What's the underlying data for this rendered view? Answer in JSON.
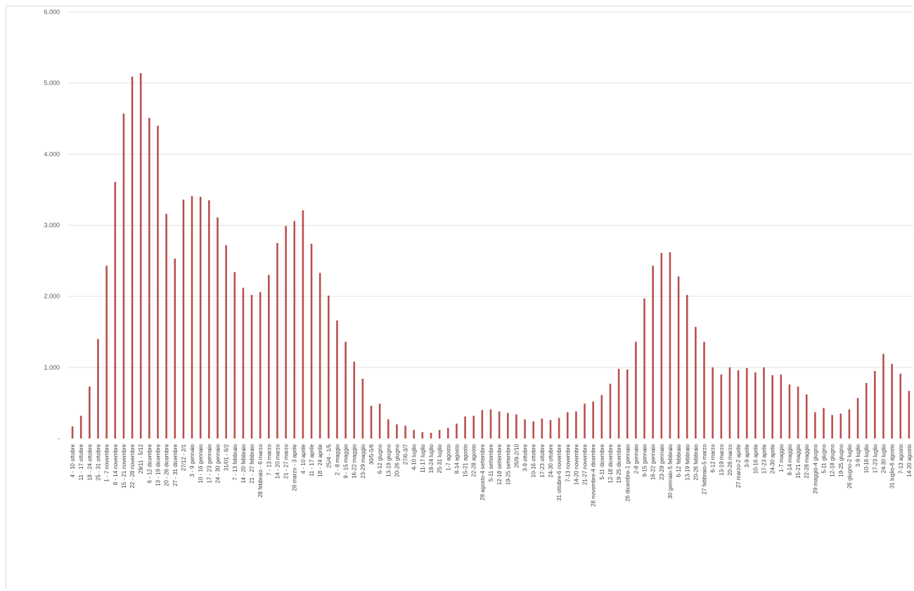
{
  "chart_data": {
    "type": "bar",
    "title": "",
    "xlabel": "",
    "ylabel": "",
    "ylim": [
      0,
      6000
    ],
    "yticks": [
      0,
      1000,
      2000,
      3000,
      4000,
      5000,
      6000
    ],
    "ytick_labels": [
      "-",
      "1.000",
      "2.000",
      "3.000",
      "4.000",
      "5.000",
      "6.000"
    ],
    "grid": true,
    "legend": "none",
    "colors": {
      "bar": "#b9504d",
      "grid": "#e3e3e3",
      "text": "#595959"
    },
    "categories": [
      "4 - 10 ottobre",
      "11 - 17 ottobre",
      "18 - 24 ottobre",
      "25 - 31 ottobre",
      "1 - 7 novembre",
      "8 - 14 novembre",
      "15 - 21 novembre",
      "22 - 28 novembre",
      "29/11 - 5/12",
      "6 - 12 dicembre",
      "13 - 19 dicembre",
      "20 - 26 dicembre",
      "27 - 31 dicembre",
      "27/12 - 2/1",
      "3 - 9 gennaio",
      "10 - 16 gennaio",
      "17 - 23 gennaio",
      "24 - 30 gennaio",
      "31/01 - 6/2",
      "7 - 13 febbraio",
      "14 - 20 febbraio",
      "21 - 27 febbraio",
      "28 febbraio - 6 marzo",
      "7 - 13 marzo",
      "14 - 20 marzo",
      "21 - 27 marzo",
      "28 marzo - 3 aprile",
      "4 - 10 aprile",
      "11 - 17 aprile",
      "18 - 24 aprile",
      "25/4 - 1/5",
      "2 - 8 maggio",
      "9 - 15 maggio",
      "16-22 maggio",
      "23-29 maggio",
      "30/5-5/6",
      "6-12 giugno",
      "13-19 giugno",
      "20-26 giugno",
      "27/6-3/7",
      "4-10 luglio",
      "11-17 luglio",
      "18-24 luglio",
      "25-31 luglio",
      "1-7 agosto",
      "8-14 agosto",
      "15-21 agosto",
      "22-28 agosto",
      "29 agosto-4 settembre",
      "5-11 settembre",
      "12-18 settembre",
      "19-25 settembre",
      "26/9-2/10",
      "3-9 ottobre",
      "10-16 ottobre",
      "17-23 ottobre",
      "24-30 ottobre",
      "31 ottobre-6 novembre",
      "7-13 novembre",
      "14-20 novembre",
      "21-27 novembre",
      "28 novembre-4 dicembre",
      "5-11 dicembre",
      "12-18 dicembre",
      "19-25 dicembre",
      "26 dicembre-1 gennaio",
      "2-8 gennaio",
      "9-15 gennaio",
      "16-22 gennaio",
      "23-29 gennaio",
      "30 gennaio-5 febbraio",
      "6-12 febbraio",
      "13-19 febbraio",
      "20-26 febbraio",
      "27 febbraio-5 marzo",
      "6-12 marzo",
      "13-19 marzo",
      "20-26 marzo",
      "27 marzo-2 aprile",
      "3-9 aprile",
      "10-16 aprile",
      "17-23 aprile",
      "24-30 aprile",
      "1-7 maggio",
      "8-14 maggio",
      "15-21 maggio",
      "22-28 maggio",
      "29 maggio-4 giugno",
      "5-11 giugno",
      "12-18 giugno",
      "19-25 giugno",
      "26 giugno-2 luglio",
      "3-9 luglio",
      "10-16 luglio",
      "17-23 luglio",
      "24-30 luglio",
      "31 luglio-6 agosto",
      "7-13 agosto",
      "14-20 agosto"
    ],
    "values": [
      170,
      320,
      730,
      1400,
      2430,
      3610,
      4570,
      5090,
      5140,
      4510,
      4400,
      3160,
      2530,
      3360,
      3410,
      3400,
      3350,
      3110,
      2720,
      2340,
      2120,
      2020,
      2060,
      2300,
      2750,
      2990,
      3060,
      3210,
      2740,
      2330,
      2010,
      1660,
      1360,
      1080,
      840,
      460,
      490,
      270,
      200,
      180,
      120,
      90,
      80,
      120,
      150,
      210,
      310,
      320,
      400,
      410,
      380,
      360,
      340,
      270,
      240,
      280,
      260,
      290,
      370,
      380,
      490,
      520,
      610,
      770,
      980,
      970,
      1360,
      1970,
      2430,
      2610,
      2620,
      2280,
      2020,
      1570,
      1360,
      1000,
      900,
      1000,
      960,
      990,
      930,
      1000,
      890,
      900,
      760,
      730,
      620,
      370,
      430,
      330,
      350,
      410,
      570,
      780,
      950,
      1190,
      1050,
      910,
      670
    ]
  }
}
